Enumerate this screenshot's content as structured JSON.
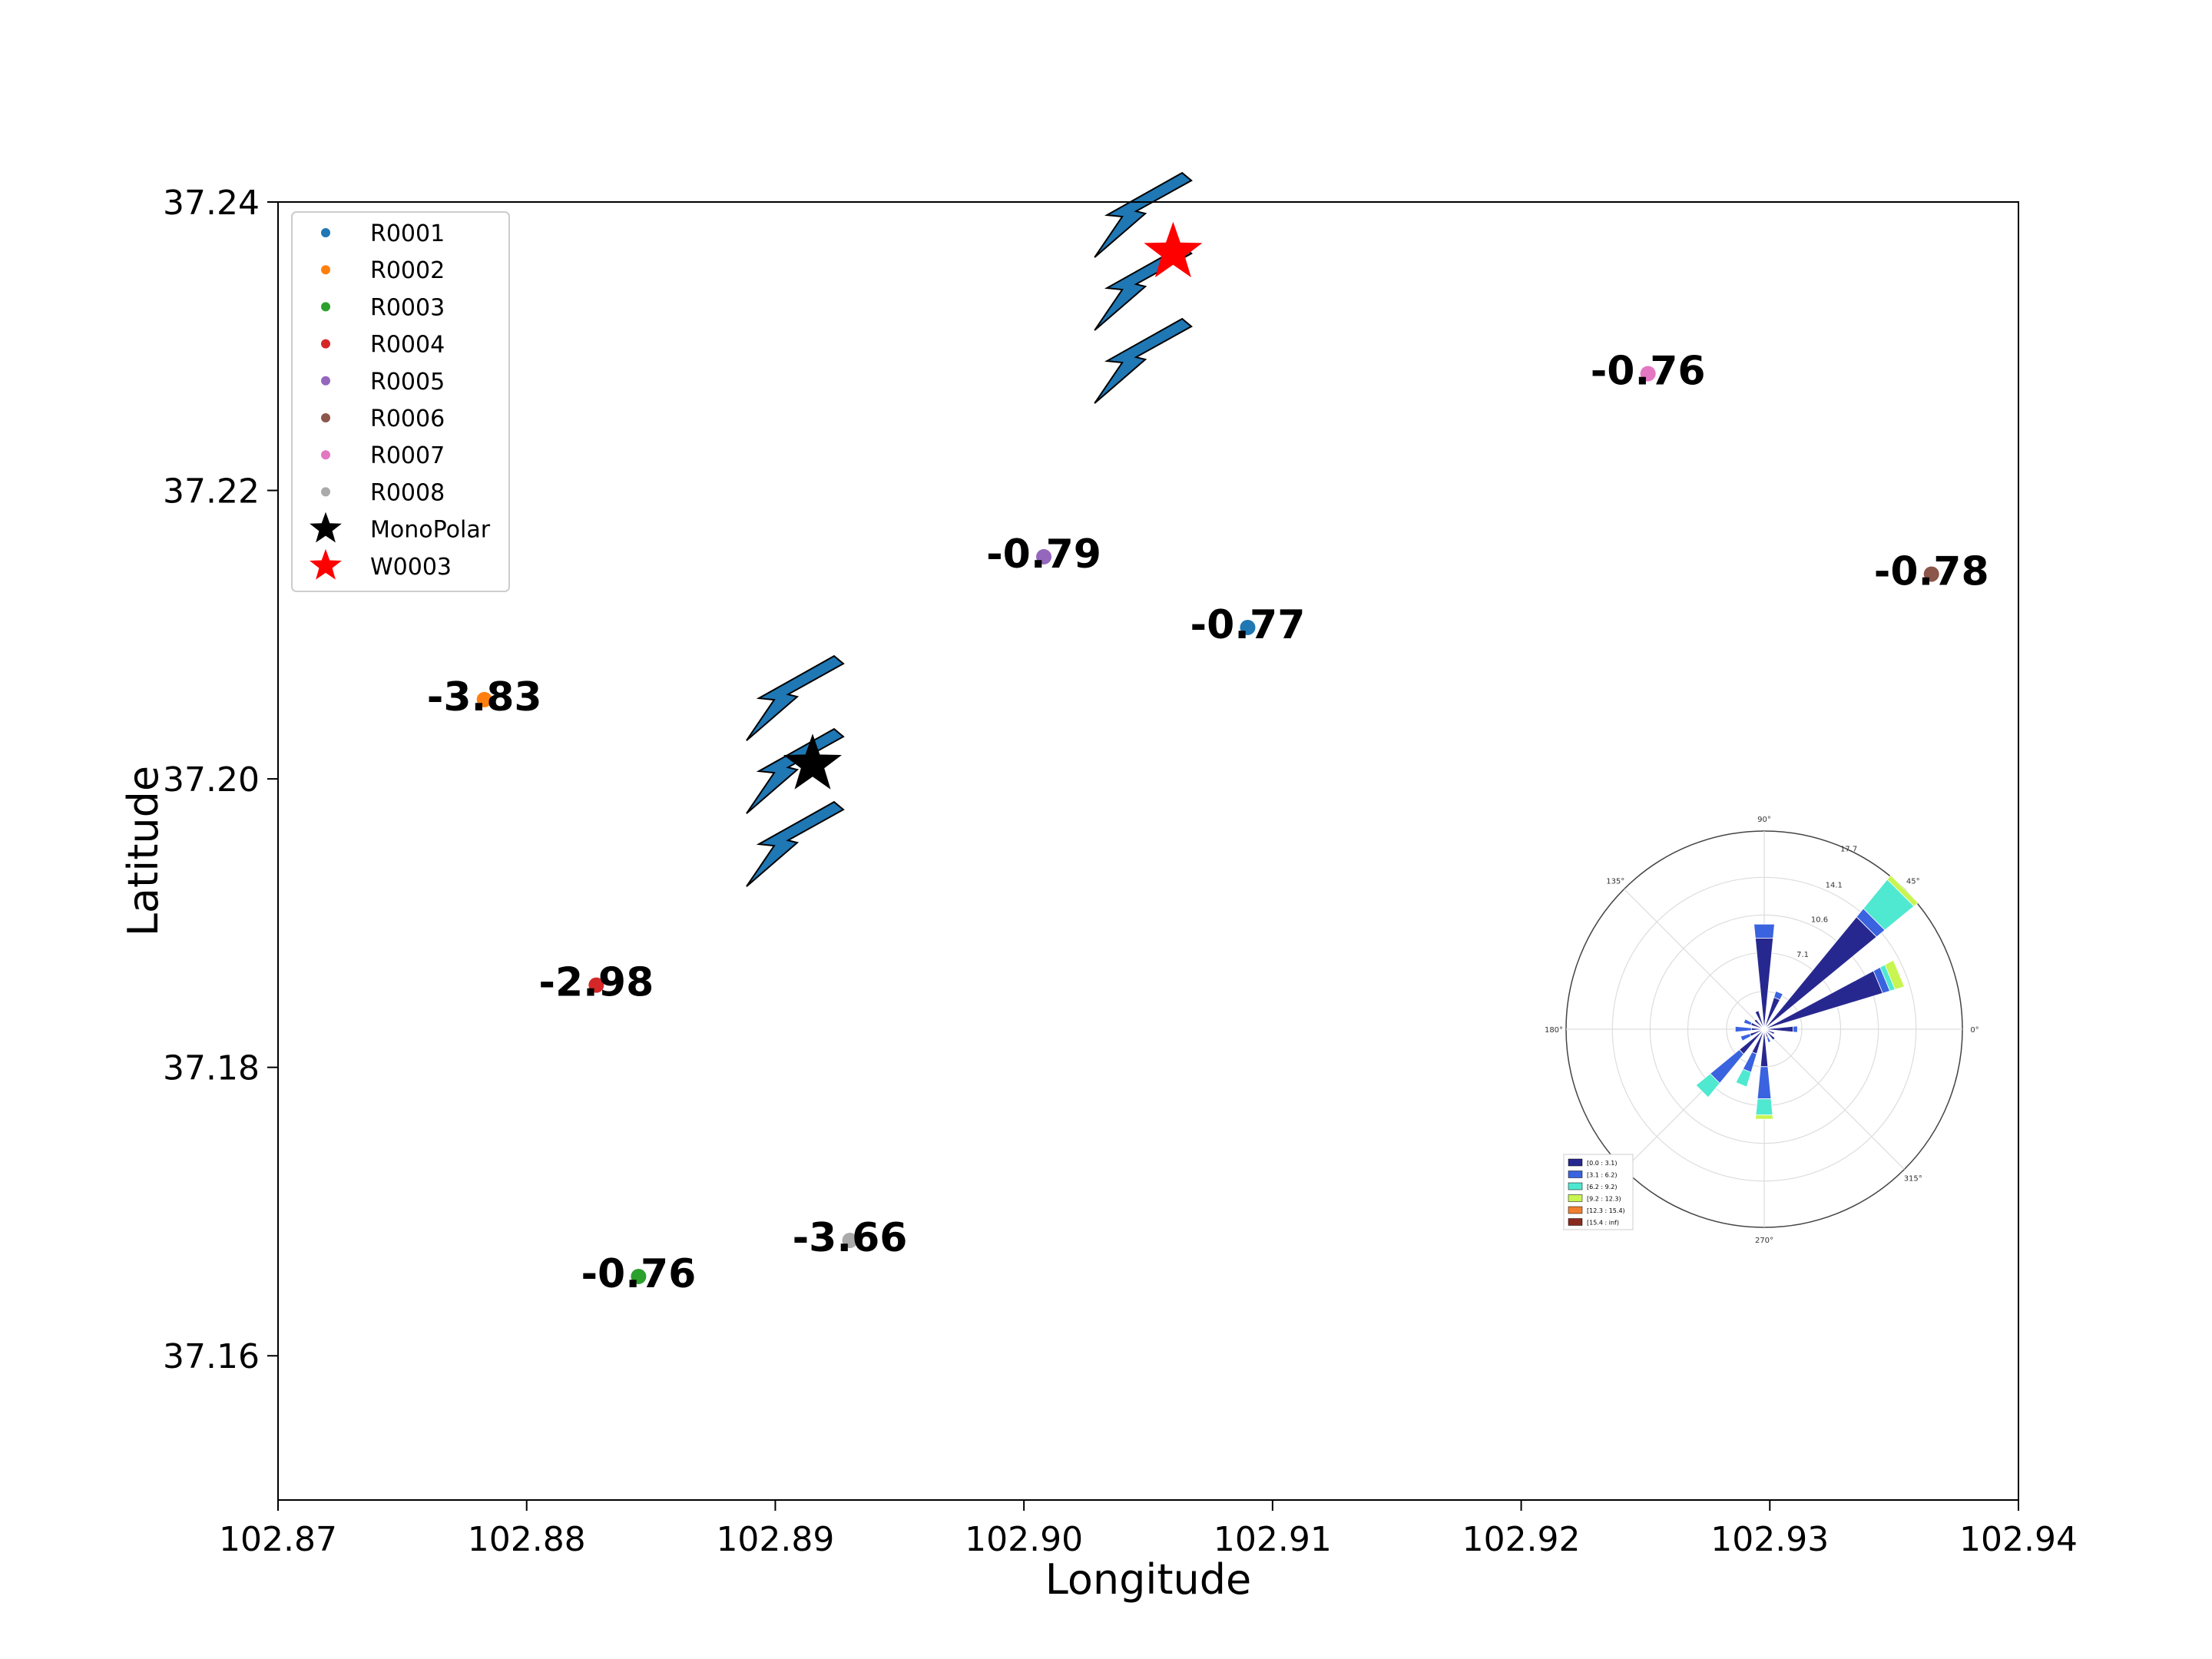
{
  "chart_data": {
    "type": "scatter",
    "xlabel": "Longitude",
    "ylabel": "Latitude",
    "xlim": [
      102.87,
      102.94
    ],
    "ylim": [
      37.15,
      37.24
    ],
    "xticks": [
      "102.87",
      "102.88",
      "102.89",
      "102.90",
      "102.91",
      "102.92",
      "102.93",
      "102.94"
    ],
    "yticks": [
      "37.16",
      "37.18",
      "37.20",
      "37.22",
      "37.24"
    ],
    "legend_position": "top-left",
    "series": [
      {
        "name": "R0001",
        "color": "#1f77b4",
        "x": 102.909,
        "y": 37.2105,
        "label": "-0.77"
      },
      {
        "name": "R0002",
        "color": "#ff7f0e",
        "x": 102.8783,
        "y": 37.2055,
        "label": "-3.83"
      },
      {
        "name": "R0003",
        "color": "#2ca02c",
        "x": 102.8845,
        "y": 37.1655,
        "label": "-0.76"
      },
      {
        "name": "R0004",
        "color": "#d62728",
        "x": 102.8828,
        "y": 37.1857,
        "label": "-2.98"
      },
      {
        "name": "R0005",
        "color": "#9467bd",
        "x": 102.9008,
        "y": 37.2154,
        "label": "-0.79"
      },
      {
        "name": "R0006",
        "color": "#8c564b",
        "x": 102.9365,
        "y": 37.2142,
        "label": "-0.78"
      },
      {
        "name": "R0007",
        "color": "#e377c2",
        "x": 102.9251,
        "y": 37.2281,
        "label": "-0.76"
      },
      {
        "name": "R0008",
        "color": "#aaaaaa",
        "x": 102.893,
        "y": 37.168,
        "label": "-3.66"
      }
    ],
    "stars": [
      {
        "name": "MonoPolar",
        "color": "#000000",
        "x": 102.8915,
        "y": 37.201
      },
      {
        "name": "W0003",
        "color": "#ff0000",
        "x": 102.906,
        "y": 37.2365
      }
    ],
    "wind_arrows": [
      {
        "x": 102.8915,
        "y": 37.2,
        "color": "#1f77b4"
      },
      {
        "x": 102.9055,
        "y": 37.2335,
        "color": "#1f77b4"
      }
    ],
    "windrose": {
      "type": "polar-bar",
      "angle_labels": [
        "90°",
        "45°",
        "0°",
        "315°",
        "270°",
        "180°",
        "135°"
      ],
      "radial_labels": [
        "7.1",
        "10.6",
        "14.1",
        "17.7"
      ],
      "bins": [
        "[0.0 : 3.1)",
        "[3.1 : 6.2)",
        "[6.2 : 9.2)",
        "[9.2 : 12.3)",
        "[12.3 : 15.4)",
        "[15.4 : inf)"
      ],
      "bin_colors": [
        "#27288f",
        "#3a63e0",
        "#4fe8d0",
        "#c8f550",
        "#ef7f30",
        "#8a2a1e"
      ],
      "directions": [
        {
          "angle": 0,
          "stacks": [
            2.7,
            0.4
          ]
        },
        {
          "angle": 22.5,
          "stacks": [
            11.5,
            0.7,
            0.5,
            0.9
          ]
        },
        {
          "angle": 45,
          "stacks": [
            13.5,
            1.0,
            3.5,
            0.5
          ]
        },
        {
          "angle": 67.5,
          "stacks": [
            3.1,
            0.6
          ]
        },
        {
          "angle": 90,
          "stacks": [
            8.5,
            1.3
          ]
        },
        {
          "angle": 112.5,
          "stacks": [
            1.8
          ]
        },
        {
          "angle": 135,
          "stacks": [
            1.2
          ]
        },
        {
          "angle": 157.5,
          "stacks": [
            1.3,
            0.7
          ]
        },
        {
          "angle": 180,
          "stacks": [
            1.2,
            1.5
          ]
        },
        {
          "angle": 202.5,
          "stacks": [
            1.4,
            0.9
          ]
        },
        {
          "angle": 225,
          "stacks": [
            3.0,
            3.5,
            1.7
          ]
        },
        {
          "angle": 247.5,
          "stacks": [
            2.4,
            1.8,
            1.4
          ]
        },
        {
          "angle": 270,
          "stacks": [
            3.5,
            3.0,
            1.5,
            0.4
          ]
        },
        {
          "angle": 292.5,
          "stacks": [
            0.8,
            0.5
          ]
        },
        {
          "angle": 315,
          "stacks": [
            1.3
          ]
        },
        {
          "angle": 337.5,
          "stacks": [
            1.0
          ]
        }
      ]
    }
  }
}
